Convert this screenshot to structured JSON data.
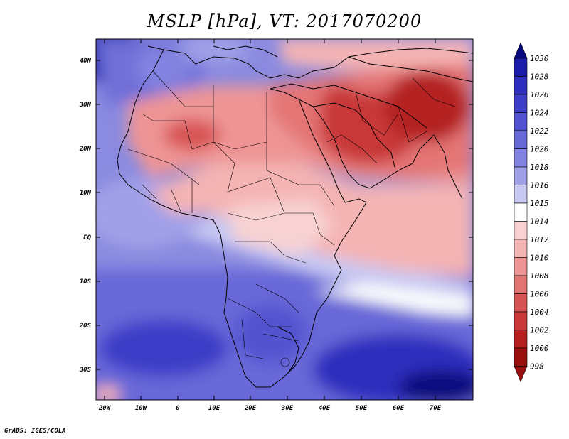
{
  "title": "MSLP [hPa], VT: 2017070200",
  "footer": "GrADS: IGES/COLA",
  "lon_ticks": [
    "20W",
    "10W",
    "0",
    "10E",
    "20E",
    "30E",
    "40E",
    "50E",
    "60E",
    "70E"
  ],
  "lat_ticks": [
    "40N",
    "30N",
    "20N",
    "10N",
    "EQ",
    "10S",
    "20S",
    "30S"
  ],
  "colorbar": {
    "labels": [
      "1030",
      "1028",
      "1026",
      "1024",
      "1022",
      "1020",
      "1018",
      "1016",
      "1015",
      "1014",
      "1012",
      "1010",
      "1008",
      "1006",
      "1004",
      "1002",
      "1000",
      "998"
    ],
    "colors": [
      "#0a0a80",
      "#1c1caa",
      "#2d2dbe",
      "#3e3ec8",
      "#5252d0",
      "#6868d8",
      "#8282e0",
      "#a0a0e8",
      "#c8c8f2",
      "#ffffff",
      "#f8d2d2",
      "#f4b4b4",
      "#ee9494",
      "#e47474",
      "#d85454",
      "#c83838",
      "#b42020",
      "#9a1010"
    ]
  },
  "map_extent": {
    "lon": [
      -22,
      80
    ],
    "lat": [
      -37,
      45
    ]
  }
}
